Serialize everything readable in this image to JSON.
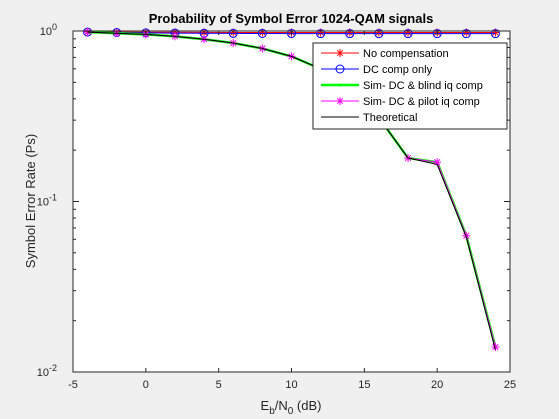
{
  "chart_data": {
    "type": "line",
    "title": "Probability of Symbol Error 1024-QAM signals",
    "xlabel_main": "E",
    "xlabel_sub1": "b",
    "xlabel_mid": "/N",
    "xlabel_sub2": "0",
    "xlabel_tail": " (dB)",
    "ylabel": "Symbol Error Rate (Ps)",
    "xlim": [
      -5,
      25
    ],
    "ylim": [
      0.01,
      1
    ],
    "yscale": "log",
    "xticks": [
      -5,
      0,
      5,
      10,
      15,
      20,
      25
    ],
    "xtick_labels": [
      "-5",
      "0",
      "5",
      "10",
      "15",
      "20",
      "25"
    ],
    "yticks": [
      0.01,
      0.1,
      1
    ],
    "ytick_labels": [
      [
        "10",
        "-2"
      ],
      [
        "10",
        "-1"
      ],
      [
        "10",
        "0"
      ]
    ],
    "legend_position": "top-right",
    "grid": false,
    "x": [
      -4,
      -2,
      0,
      2,
      4,
      6,
      8,
      10,
      12,
      14,
      16,
      18,
      20,
      22,
      24
    ],
    "series": [
      {
        "name": "No compensation",
        "color": "#ff0000",
        "marker": "asterisk",
        "line": true,
        "values": [
          0.99,
          0.985,
          0.983,
          0.982,
          0.981,
          0.98,
          0.98,
          0.98,
          0.98,
          0.98,
          0.98,
          0.98,
          0.98,
          0.98,
          0.98
        ]
      },
      {
        "name": "DC comp only",
        "color": "#0000ff",
        "marker": "circle",
        "line": true,
        "values": [
          0.985,
          0.98,
          0.975,
          0.972,
          0.97,
          0.968,
          0.967,
          0.966,
          0.965,
          0.965,
          0.965,
          0.965,
          0.965,
          0.965,
          0.965
        ]
      },
      {
        "name": "Sim- DC & blind iq comp",
        "color": "#00ff00",
        "marker": "point",
        "line": true,
        "values": [
          0.985,
          0.97,
          0.955,
          0.93,
          0.895,
          0.85,
          0.79,
          0.71,
          0.6,
          0.47,
          0.31,
          0.18,
          0.17,
          0.063,
          0.014
        ]
      },
      {
        "name": "Sim- DC & pilot iq comp",
        "color": "#ff00ff",
        "marker": "asterisk",
        "line": true,
        "values": [
          0.985,
          0.97,
          0.955,
          0.93,
          0.895,
          0.85,
          0.79,
          0.71,
          0.6,
          0.47,
          0.31,
          0.18,
          0.17,
          0.063,
          0.014
        ]
      },
      {
        "name": "Theoretical",
        "color": "#000000",
        "marker": "none",
        "line": true,
        "values": [
          0.985,
          0.97,
          0.955,
          0.93,
          0.895,
          0.85,
          0.79,
          0.71,
          0.6,
          0.47,
          0.31,
          0.18,
          0.165,
          0.062,
          0.0135
        ]
      }
    ]
  }
}
